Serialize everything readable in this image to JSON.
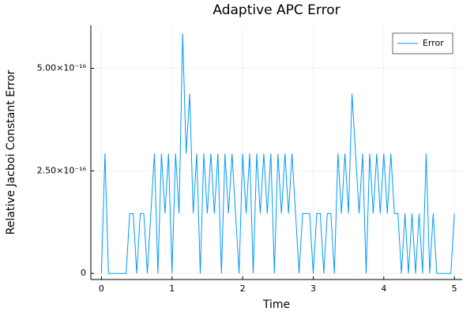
{
  "chart_data": {
    "type": "line",
    "title": "Adaptive APC Error",
    "xlabel": "Time",
    "ylabel": "Relative Jacboi Constant Error",
    "x": [
      0,
      0.05,
      0.1,
      0.15,
      0.2,
      0.25,
      0.3,
      0.35,
      0.4,
      0.45,
      0.5,
      0.55,
      0.6,
      0.65,
      0.7,
      0.75,
      0.8,
      0.85,
      0.9,
      0.95,
      1,
      1.05,
      1.1,
      1.15,
      1.2,
      1.25,
      1.3,
      1.35,
      1.4,
      1.45,
      1.5,
      1.55,
      1.6,
      1.65,
      1.7,
      1.75,
      1.8,
      1.85,
      1.9,
      1.95,
      2,
      2.05,
      2.1,
      2.15,
      2.2,
      2.25,
      2.3,
      2.35,
      2.4,
      2.45,
      2.5,
      2.55,
      2.6,
      2.65,
      2.7,
      2.75,
      2.8,
      2.85,
      2.9,
      2.95,
      3,
      3.05,
      3.1,
      3.15,
      3.2,
      3.25,
      3.3,
      3.35,
      3.4,
      3.45,
      3.5,
      3.55,
      3.6,
      3.65,
      3.7,
      3.75,
      3.8,
      3.85,
      3.9,
      3.95,
      4,
      4.05,
      4.1,
      4.15,
      4.2,
      4.25,
      4.3,
      4.35,
      4.4,
      4.45,
      4.5,
      4.55,
      4.6,
      4.65,
      4.7,
      4.75,
      4.8,
      4.85,
      4.9,
      4.95,
      5
    ],
    "series": [
      {
        "name": "Error",
        "color": "#009af9",
        "values": [
          0,
          2.92e-16,
          0,
          0,
          0,
          0,
          0,
          0,
          1.46e-16,
          1.46e-16,
          0,
          1.46e-16,
          1.46e-16,
          0,
          1.46e-16,
          2.92e-16,
          0,
          2.92e-16,
          1.46e-16,
          2.92e-16,
          0,
          2.92e-16,
          1.46e-16,
          5.85e-16,
          2.92e-16,
          4.38e-16,
          1.46e-16,
          2.92e-16,
          0,
          2.92e-16,
          1.46e-16,
          2.92e-16,
          1.46e-16,
          2.92e-16,
          0,
          2.92e-16,
          1.46e-16,
          2.92e-16,
          1.46e-16,
          0,
          2.92e-16,
          1.46e-16,
          2.92e-16,
          0,
          2.92e-16,
          1.46e-16,
          2.92e-16,
          1.46e-16,
          2.92e-16,
          0,
          2.92e-16,
          1.46e-16,
          2.92e-16,
          1.46e-16,
          2.92e-16,
          1.46e-16,
          0,
          1.46e-16,
          1.46e-16,
          1.46e-16,
          0,
          1.46e-16,
          1.46e-16,
          0,
          1.46e-16,
          1.46e-16,
          0,
          2.92e-16,
          1.46e-16,
          2.92e-16,
          1.46e-16,
          4.38e-16,
          2.92e-16,
          1.46e-16,
          2.92e-16,
          0,
          2.92e-16,
          1.46e-16,
          2.92e-16,
          1.46e-16,
          2.92e-16,
          1.46e-16,
          2.92e-16,
          1.46e-16,
          1.46e-16,
          0,
          1.46e-16,
          0,
          1.46e-16,
          0,
          1.46e-16,
          0,
          2.92e-16,
          0,
          1.46e-16,
          0,
          0,
          0,
          0,
          0,
          1.46e-16
        ]
      }
    ],
    "xlim": [
      -0.15,
      5.11
    ],
    "ylim": [
      -1.5e-17,
      6.05e-16
    ],
    "xticks": [
      0,
      1,
      2,
      3,
      4,
      5
    ],
    "yticks": [
      0,
      {
        "value": 2.5e-16,
        "label": "2.50×10⁻¹⁶"
      },
      {
        "value": 5e-16,
        "label": "5.00×10⁻¹⁶"
      }
    ],
    "grid": true,
    "legend": "top-right"
  }
}
